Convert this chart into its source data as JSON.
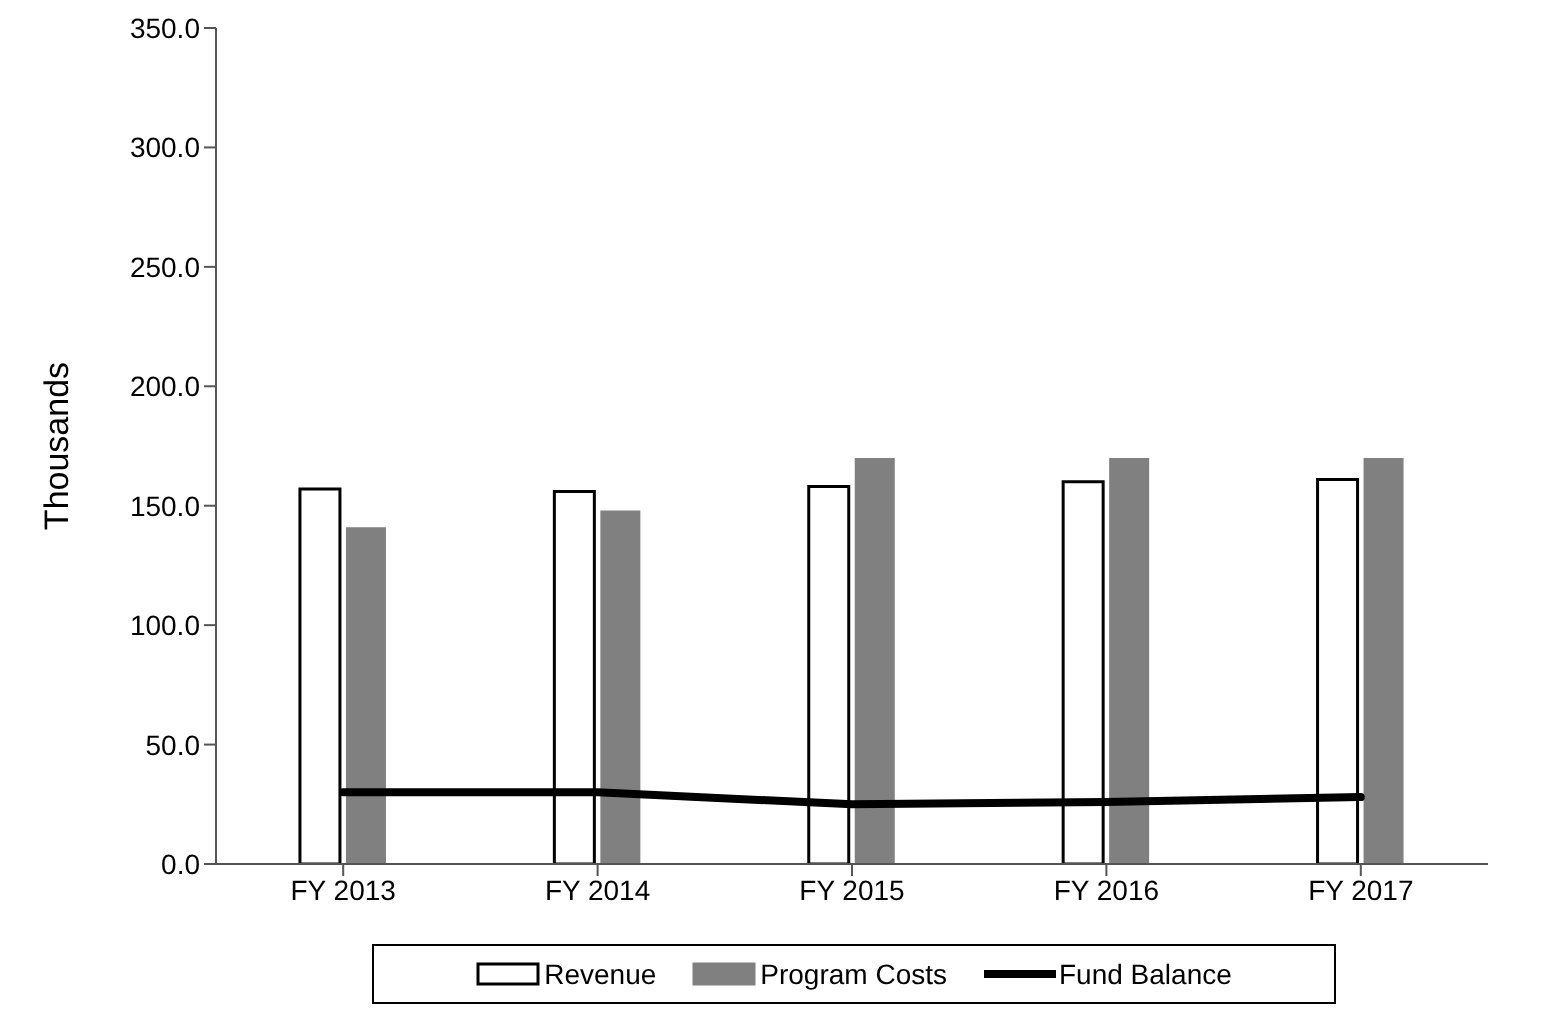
{
  "chart_data": {
    "type": "bar",
    "ylabel": "Thousands",
    "categories": [
      "FY 2013",
      "FY 2014",
      "FY 2015",
      "FY 2016",
      "FY 2017"
    ],
    "series": [
      {
        "name": "Revenue",
        "color": "#ffffff",
        "values": [
          157,
          156,
          158,
          160,
          161
        ]
      },
      {
        "name": "Program Costs",
        "color": "#808080",
        "values": [
          141,
          148,
          170,
          170,
          170
        ]
      },
      {
        "name": "Fund Balance",
        "type": "line",
        "color": "#000000",
        "values": [
          30,
          30,
          25,
          26,
          28
        ]
      }
    ],
    "ylim": [
      0,
      350
    ],
    "yticks": [
      {
        "value": 0,
        "label": "0.0"
      },
      {
        "value": 50,
        "label": "50.0"
      },
      {
        "value": 100,
        "label": "100.0"
      },
      {
        "value": 150,
        "label": "150.0"
      },
      {
        "value": 200,
        "label": "200.0"
      },
      {
        "value": 250,
        "label": "250.0"
      },
      {
        "value": 300,
        "label": "300.0"
      },
      {
        "value": 350,
        "label": "350.0"
      }
    ],
    "grid": false,
    "legend": "bottom",
    "marker": "none"
  }
}
